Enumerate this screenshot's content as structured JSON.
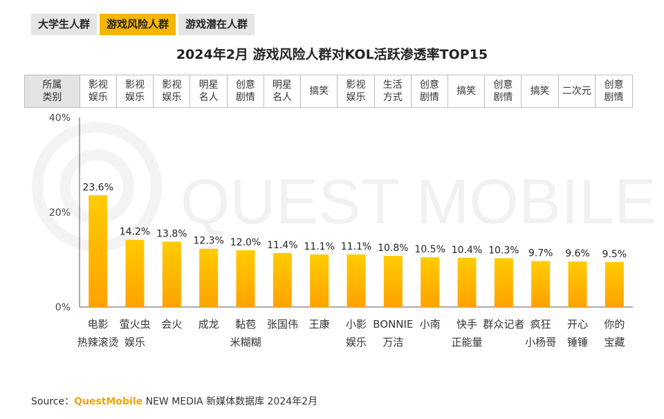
{
  "tabs": [
    {
      "label": "大学生人群",
      "active": false
    },
    {
      "label": "游戏风险人群",
      "active": true
    },
    {
      "label": "游戏潜在人群",
      "active": false
    }
  ],
  "colors": {
    "accent": "#f6b500",
    "bar_top": "#ffcc00",
    "bar_bottom": "#ffa200"
  },
  "category_header": "所属\n类别",
  "categories_type": [
    "影视\n娱乐",
    "影视\n娱乐",
    "影视\n娱乐",
    "明星\n名人",
    "创意\n剧情",
    "明星\n名人",
    "搞笑",
    "影视\n娱乐",
    "生活\n方式",
    "创意\n剧情",
    "搞笑",
    "创意\n剧情",
    "搞笑",
    "二次元",
    "创意\n剧情"
  ],
  "watermark": "QUEST MOBILE",
  "source": {
    "prefix": "Source：",
    "brand": "QuestMobile",
    "text": " NEW MEDIA 新媒体数据库 2024年2月"
  },
  "chart_data": {
    "type": "bar",
    "title": "2024年2月 游戏风险人群对KOL活跃渗透率TOP15",
    "categories": [
      "电影\n热辣滚烫",
      "萤火虫\n娱乐",
      "会火",
      "成龙",
      "黏苞\n米糊糊",
      "张国伟",
      "王康",
      "小影\n娱乐",
      "BONNIE\n万洁",
      "小南",
      "快手\n正能量",
      "群众记者",
      "疯狂\n小杨哥",
      "开心\n锤锤",
      "你的\n宝藏"
    ],
    "values": [
      23.6,
      14.2,
      13.8,
      12.3,
      12.0,
      11.4,
      11.1,
      11.1,
      10.8,
      10.5,
      10.4,
      10.3,
      9.7,
      9.6,
      9.5
    ],
    "value_labels": [
      "23.6%",
      "14.2%",
      "13.8%",
      "12.3%",
      "12.0%",
      "11.4%",
      "11.1%",
      "11.1%",
      "10.8%",
      "10.5%",
      "10.4%",
      "10.3%",
      "9.7%",
      "9.6%",
      "9.5%"
    ],
    "yticks": [
      "0%",
      "20%",
      "40%"
    ],
    "ytick_values": [
      0,
      20,
      40
    ],
    "ylim": [
      0,
      40
    ],
    "xlabel": "",
    "ylabel": "",
    "grid": false
  }
}
